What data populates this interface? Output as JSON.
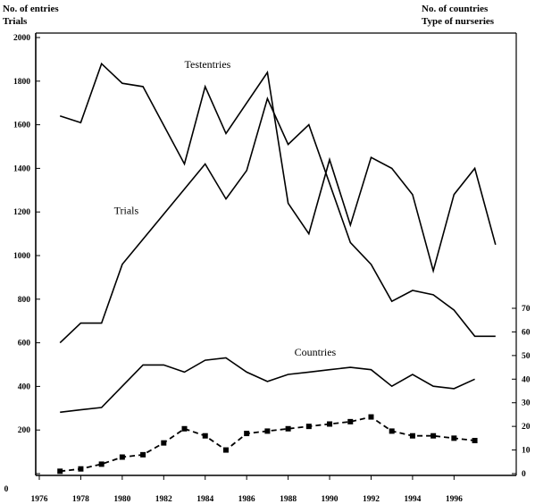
{
  "chart_data": {
    "type": "line",
    "left_axis_title_lines": [
      "No. of entries",
      "Trials"
    ],
    "right_axis_title_lines": [
      "No. of countries",
      "Type of nurseries"
    ],
    "x_ticks": [
      "1976",
      "1978",
      "1980",
      "1982",
      "1984",
      "1986",
      "1988",
      "1990",
      "1992",
      "1994",
      "1996"
    ],
    "x_range": [
      1976,
      1999
    ],
    "left_ticks": [
      "0",
      "200",
      "400",
      "600",
      "800",
      "1000",
      "1200",
      "1400",
      "1600",
      "1800",
      "2000"
    ],
    "left_range": [
      0,
      2000
    ],
    "right_ticks": [
      "0",
      "10",
      "20",
      "30",
      "40",
      "50",
      "60",
      "70"
    ],
    "right_range": [
      0,
      70
    ],
    "grid": false,
    "series": [
      {
        "name": "Testentries",
        "axis": "left",
        "style": "solid",
        "x": [
          1977,
          1978,
          1979,
          1980,
          1981,
          1983,
          1984,
          1985,
          1987,
          1988,
          1989,
          1990,
          1991,
          1992,
          1993,
          1994,
          1995,
          1996,
          1997,
          1998
        ],
        "y": [
          1640,
          1610,
          1880,
          1790,
          1775,
          1420,
          1775,
          1560,
          1840,
          1240,
          1100,
          1440,
          1140,
          1450,
          1400,
          1280,
          930,
          1280,
          1400,
          1050
        ]
      },
      {
        "name": "Trials",
        "axis": "left",
        "style": "solid",
        "x": [
          1977,
          1978,
          1979,
          1980,
          1984,
          1985,
          1986,
          1987,
          1988,
          1989,
          1991,
          1992,
          1993,
          1994,
          1995,
          1996,
          1997,
          1998
        ],
        "y": [
          600,
          690,
          690,
          960,
          1420,
          1260,
          1390,
          1720,
          1510,
          1600,
          1060,
          960,
          790,
          840,
          820,
          750,
          630,
          630
        ]
      },
      {
        "name": "Countries",
        "axis": "right",
        "style": "solid",
        "x": [
          1977,
          1978,
          1979,
          1980,
          1981,
          1982,
          1983,
          1984,
          1985,
          1986,
          1987,
          1988,
          1989,
          1990,
          1991,
          1992,
          1993,
          1994,
          1995,
          1996,
          1997
        ],
        "y": [
          26,
          27,
          28,
          37,
          46,
          46,
          43,
          48,
          49,
          43,
          39,
          42,
          43,
          44,
          45,
          44,
          37,
          42,
          37,
          36,
          40
        ]
      },
      {
        "name": "",
        "axis": "right",
        "style": "dashed",
        "x": [
          1977,
          1978,
          1979,
          1980,
          1981,
          1982,
          1983,
          1984,
          1985,
          1986,
          1987,
          1988,
          1989,
          1990,
          1991,
          1992,
          1993,
          1994,
          1995,
          1996,
          1997
        ],
        "y": [
          1,
          2,
          4,
          7,
          8,
          13,
          19,
          16,
          10,
          17,
          18,
          19,
          20,
          21,
          22,
          24,
          18,
          16,
          16,
          15,
          14
        ]
      }
    ],
    "labels": [
      {
        "text": "Testentries",
        "x": 1983,
        "y": 1860,
        "axis": "left"
      },
      {
        "text": "Trials",
        "x": 1979.6,
        "y": 1190,
        "axis": "left"
      },
      {
        "text": "Countries",
        "x": 1988.3,
        "y": 50,
        "axis": "right"
      }
    ]
  }
}
